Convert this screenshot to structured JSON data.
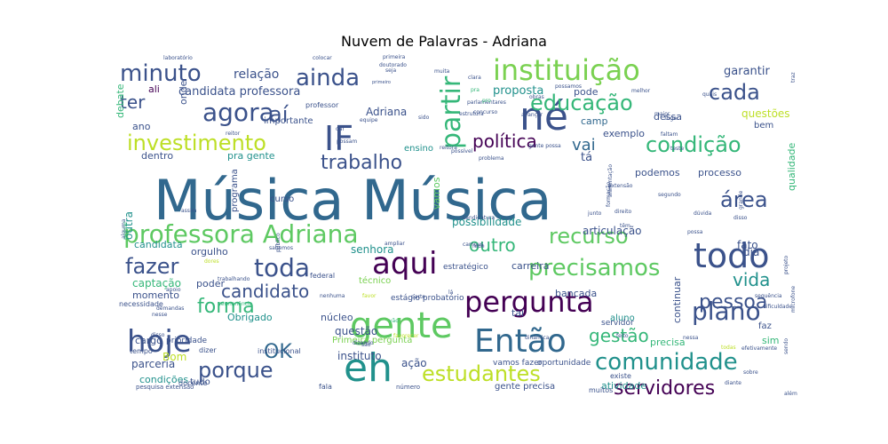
{
  "chart_data": {
    "type": "wordcloud",
    "title": "Nuvem de Palavras - Adriana",
    "background": "#ffffff",
    "colormap": "viridis",
    "words": [
      {
        "text": "Música Música",
        "color": "#31688e"
      },
      {
        "text": "gente",
        "color": "#5ec962"
      },
      {
        "text": "eh",
        "color": "#21918c"
      },
      {
        "text": "aqui",
        "color": "#440154"
      },
      {
        "text": "todo",
        "color": "#3b528b"
      },
      {
        "text": "hoje",
        "color": "#3b528b"
      },
      {
        "text": "Então",
        "color": "#31688e"
      },
      {
        "text": "né",
        "color": "#3b528b"
      },
      {
        "text": "IF",
        "color": "#3b528b"
      },
      {
        "text": "pergunta",
        "color": "#440154"
      },
      {
        "text": "instituição",
        "color": "#7ad151"
      },
      {
        "text": "professora Adriana",
        "color": "#5ec962"
      },
      {
        "text": "toda",
        "color": "#3b528b"
      },
      {
        "text": "plano",
        "color": "#3b528b"
      },
      {
        "text": "agora",
        "color": "#3b528b"
      },
      {
        "text": "precisamos",
        "color": "#5ec962"
      },
      {
        "text": "comunidade",
        "color": "#21918c"
      },
      {
        "text": "condição",
        "color": "#35b779"
      },
      {
        "text": "estudantes",
        "color": "#bddf26"
      },
      {
        "text": "minuto",
        "color": "#3b528b"
      },
      {
        "text": "porque",
        "color": "#3b528b"
      },
      {
        "text": "investimento",
        "color": "#bddf26"
      },
      {
        "text": "servidores",
        "color": "#440154"
      },
      {
        "text": "fazer",
        "color": "#3b528b"
      },
      {
        "text": "educação",
        "color": "#35b779"
      },
      {
        "text": "partir",
        "color": "#35b779"
      },
      {
        "text": "recurso",
        "color": "#5ec962"
      },
      {
        "text": "ainda",
        "color": "#3b528b"
      },
      {
        "text": "cada",
        "color": "#3b528b"
      },
      {
        "text": "trabalho",
        "color": "#3b528b"
      },
      {
        "text": "forma",
        "color": "#35b779"
      },
      {
        "text": "candidato",
        "color": "#3b528b"
      },
      {
        "text": "pessoa",
        "color": "#3b528b"
      },
      {
        "text": "vida",
        "color": "#21918c"
      },
      {
        "text": "política",
        "color": "#440154"
      },
      {
        "text": "gestão",
        "color": "#35b779"
      },
      {
        "text": "área",
        "color": "#3b528b"
      },
      {
        "text": "outro",
        "color": "#35b779"
      },
      {
        "text": "OK",
        "color": "#31688e"
      },
      {
        "text": "aí",
        "color": "#3b528b"
      },
      {
        "text": "ter",
        "color": "#3b528b"
      },
      {
        "text": "vai",
        "color": "#31688e"
      },
      {
        "text": "relação",
        "color": "#3b528b"
      },
      {
        "text": "candidata professora",
        "color": "#3b528b"
      },
      {
        "text": "garantir",
        "color": "#3b528b"
      },
      {
        "text": "proposta",
        "color": "#21918c"
      },
      {
        "text": "pode",
        "color": "#3b528b"
      },
      {
        "text": "questões",
        "color": "#bddf26"
      },
      {
        "text": "bem",
        "color": "#3b528b"
      },
      {
        "text": "Adriana",
        "color": "#3b528b"
      },
      {
        "text": "ano",
        "color": "#3b528b"
      },
      {
        "text": "ali",
        "color": "#440154"
      },
      {
        "text": "dentro",
        "color": "#3b528b"
      },
      {
        "text": "pra gente",
        "color": "#21918c"
      },
      {
        "text": "tá",
        "color": "#3b528b"
      },
      {
        "text": "podemos",
        "color": "#3b528b"
      },
      {
        "text": "processo",
        "color": "#3b528b"
      },
      {
        "text": "exemplo",
        "color": "#3b528b"
      },
      {
        "text": "camp",
        "color": "#31688e"
      },
      {
        "text": "dessa",
        "color": "#3b528b"
      },
      {
        "text": "ensino",
        "color": "#21918c"
      },
      {
        "text": "curso",
        "color": "#3b528b"
      },
      {
        "text": "importante",
        "color": "#3b528b"
      },
      {
        "text": "professor",
        "color": "#3b528b"
      },
      {
        "text": "vamos",
        "color": "#5ec962"
      },
      {
        "text": "possibilidade",
        "color": "#21918c"
      },
      {
        "text": "candidata",
        "color": "#21918c"
      },
      {
        "text": "orgulho",
        "color": "#3b528b"
      },
      {
        "text": "senhora",
        "color": "#21918c"
      },
      {
        "text": "articulação",
        "color": "#3b528b"
      },
      {
        "text": "captação",
        "color": "#35b779"
      },
      {
        "text": "poder",
        "color": "#3b528b"
      },
      {
        "text": "momento",
        "color": "#3b528b"
      },
      {
        "text": "Obrigado",
        "color": "#21918c"
      },
      {
        "text": "núcleo",
        "color": "#3b528b"
      },
      {
        "text": "questão",
        "color": "#3b528b"
      },
      {
        "text": "instituto",
        "color": "#3b528b"
      },
      {
        "text": "ação",
        "color": "#3b528b"
      },
      {
        "text": "cargo",
        "color": "#3b528b"
      },
      {
        "text": "Bom",
        "color": "#bddf26"
      },
      {
        "text": "parceria",
        "color": "#3b528b"
      },
      {
        "text": "condições",
        "color": "#21918c"
      },
      {
        "text": "tai",
        "color": "#3b528b"
      },
      {
        "text": "continuar",
        "color": "#3b528b"
      },
      {
        "text": "precisa",
        "color": "#35b779"
      },
      {
        "text": "faz",
        "color": "#3b528b"
      },
      {
        "text": "sim",
        "color": "#35b779"
      },
      {
        "text": "dia",
        "color": "#3b528b"
      },
      {
        "text": "fato",
        "color": "#3b528b"
      },
      {
        "text": "tudo",
        "color": "#3b528b"
      },
      {
        "text": "atividade",
        "color": "#21918c"
      },
      {
        "text": "gente precisa",
        "color": "#3b528b"
      },
      {
        "text": "outra",
        "color": "#21918c"
      },
      {
        "text": "debate",
        "color": "#35b779"
      },
      {
        "text": "onde",
        "color": "#3b528b"
      },
      {
        "text": "programa",
        "color": "#3b528b"
      },
      {
        "text": "carreira",
        "color": "#3b528b"
      },
      {
        "text": "bancada",
        "color": "#3b528b"
      },
      {
        "text": "aluno",
        "color": "#21918c"
      },
      {
        "text": "servidor",
        "color": "#3b528b"
      },
      {
        "text": "técnico",
        "color": "#7ad151"
      },
      {
        "text": "estágio probatório",
        "color": "#3b528b"
      },
      {
        "text": "qualidade",
        "color": "#35b779"
      },
      {
        "text": "estratégico",
        "color": "#3b528b"
      },
      {
        "text": "federal",
        "color": "#3b528b"
      },
      {
        "text": "necessidade",
        "color": "#3b528b"
      },
      {
        "text": "prioridade",
        "color": "#3b528b"
      },
      {
        "text": "dizer",
        "color": "#3b528b"
      },
      {
        "text": "tempo",
        "color": "#3b528b"
      },
      {
        "text": "institucional",
        "color": "#3b528b"
      },
      {
        "text": "Primeira pergunta",
        "color": "#7ad151"
      },
      {
        "text": "vamos fazer",
        "color": "#3b528b"
      },
      {
        "text": "oportunidade",
        "color": "#3b528b"
      },
      {
        "text": "existe",
        "color": "#3b528b"
      },
      {
        "text": "muitos",
        "color": "#3b528b"
      },
      {
        "text": "docente",
        "color": "#3b528b"
      },
      {
        "text": "fala",
        "color": "#3b528b"
      },
      {
        "text": "número",
        "color": "#3b528b"
      },
      {
        "text": "pesquisa extensão",
        "color": "#3b528b"
      },
      {
        "text": "laboratório",
        "color": "#3b528b"
      },
      {
        "text": "colocar",
        "color": "#3b528b"
      },
      {
        "text": "primeira",
        "color": "#3b528b"
      },
      {
        "text": "muita",
        "color": "#3b528b"
      },
      {
        "text": "clara",
        "color": "#3b528b"
      },
      {
        "text": "possamos",
        "color": "#3b528b"
      },
      {
        "text": "melhor",
        "color": "#3b528b"
      },
      {
        "text": "quais",
        "color": "#3b528b"
      },
      {
        "text": "lugar",
        "color": "#3b528b"
      },
      {
        "text": "faltam",
        "color": "#3b528b"
      },
      {
        "text": "estrutura",
        "color": "#3b528b"
      },
      {
        "text": "avançar",
        "color": "#3b528b"
      },
      {
        "text": "obras",
        "color": "#3b528b"
      },
      {
        "text": "parlamentares",
        "color": "#3b528b"
      },
      {
        "text": "equipe",
        "color": "#3b528b"
      },
      {
        "text": "primeiro",
        "color": "#3b528b"
      },
      {
        "text": "doutorado",
        "color": "#3b528b"
      },
      {
        "text": "reitor",
        "color": "#3b528b"
      },
      {
        "text": "dar",
        "color": "#3b528b"
      },
      {
        "text": "possam",
        "color": "#3b528b"
      },
      {
        "text": "reitora",
        "color": "#3b528b"
      },
      {
        "text": "possível",
        "color": "#3b528b"
      },
      {
        "text": "problema",
        "color": "#3b528b"
      },
      {
        "text": "gente possa",
        "color": "#3b528b"
      },
      {
        "text": "teste",
        "color": "#3b528b"
      },
      {
        "text": "extensão",
        "color": "#3b528b"
      },
      {
        "text": "segundo",
        "color": "#3b528b"
      },
      {
        "text": "dúvida",
        "color": "#3b528b"
      },
      {
        "text": "disso",
        "color": "#3b528b"
      },
      {
        "text": "grande",
        "color": "#3b528b"
      },
      {
        "text": "junto",
        "color": "#3b528b"
      },
      {
        "text": "direito",
        "color": "#3b528b"
      },
      {
        "text": "têm",
        "color": "#3b528b"
      },
      {
        "text": "alimentação",
        "color": "#3b528b"
      },
      {
        "text": "formação",
        "color": "#3b528b"
      },
      {
        "text": "possa",
        "color": "#3b528b"
      },
      {
        "text": "rede",
        "color": "#3b528b"
      },
      {
        "text": "candidatura",
        "color": "#3b528b"
      },
      {
        "text": "assim",
        "color": "#3b528b"
      },
      {
        "text": "alguma",
        "color": "#3b528b"
      },
      {
        "text": "sabemos",
        "color": "#3b528b"
      },
      {
        "text": "público",
        "color": "#3b528b"
      },
      {
        "text": "campus",
        "color": "#3b528b"
      },
      {
        "text": "lá",
        "color": "#3b528b"
      },
      {
        "text": "sequência",
        "color": "#3b528b"
      },
      {
        "text": "dificuldade",
        "color": "#3b528b"
      },
      {
        "text": "projeto",
        "color": "#3b528b"
      },
      {
        "text": "microfone",
        "color": "#3b528b"
      },
      {
        "text": "efetivamente",
        "color": "#3b528b"
      },
      {
        "text": "sendo",
        "color": "#3b528b"
      },
      {
        "text": "dinâmica",
        "color": "#3b528b"
      },
      {
        "text": "feito",
        "color": "#3b528b"
      },
      {
        "text": "nessa",
        "color": "#3b528b"
      },
      {
        "text": "demandas",
        "color": "#3b528b"
      },
      {
        "text": "permanência",
        "color": "#35b779"
      },
      {
        "text": "favor",
        "color": "#bddf26"
      },
      {
        "text": "trabalhando",
        "color": "#3b528b"
      },
      {
        "text": "pensar",
        "color": "#35b779"
      },
      {
        "text": "maior",
        "color": "#3b528b"
      },
      {
        "text": "traz",
        "color": "#3b528b"
      },
      {
        "text": "concurso",
        "color": "#3b528b"
      },
      {
        "text": "pro",
        "color": "#35b779"
      },
      {
        "text": "pra",
        "color": "#35b779"
      },
      {
        "text": "ampliar",
        "color": "#3b528b"
      },
      {
        "text": "vão",
        "color": "#35b779"
      },
      {
        "text": "parte",
        "color": "#3b528b"
      },
      {
        "text": "favorecer",
        "color": "#bddf26"
      },
      {
        "text": "são",
        "color": "#3b528b"
      },
      {
        "text": "disso",
        "color": "#3b528b"
      },
      {
        "text": "nesse",
        "color": "#3b528b"
      },
      {
        "text": "apoio",
        "color": "#3b528b"
      },
      {
        "text": "dores",
        "color": "#bddf26"
      },
      {
        "text": "todas",
        "color": "#bddf26"
      },
      {
        "text": "diante",
        "color": "#3b528b"
      },
      {
        "text": "sobre",
        "color": "#3b528b"
      },
      {
        "text": "além",
        "color": "#3b528b"
      },
      {
        "text": "nenhuma",
        "color": "#3b528b"
      },
      {
        "text": "dizendo",
        "color": "#3b528b"
      },
      {
        "text": "seja",
        "color": "#3b528b"
      },
      {
        "text": "sido",
        "color": "#3b528b"
      }
    ]
  }
}
